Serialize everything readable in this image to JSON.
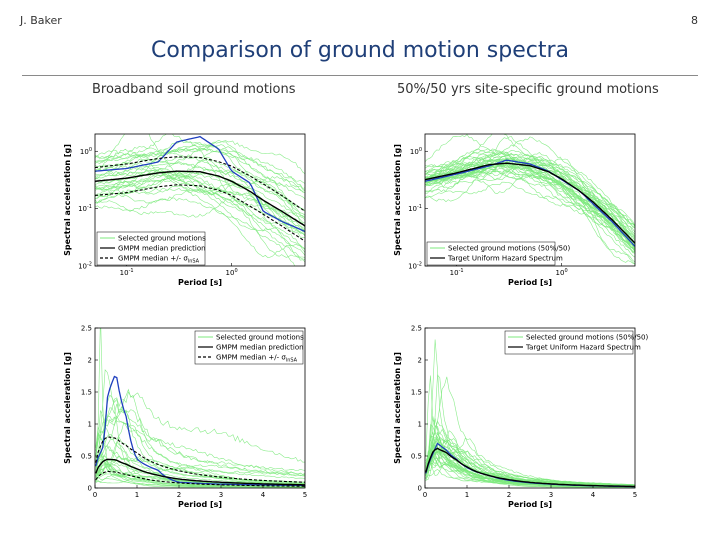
{
  "header": {
    "author": "J. Baker",
    "page_number": "8"
  },
  "title": "Comparison of ground motion spectra",
  "columns": {
    "left_label": "Broadband soil ground motions",
    "right_label": "50%/50 yrs site-specific ground motions"
  },
  "colors": {
    "records": "#7dea7d",
    "median": "#000000",
    "record_highlight": "#1f3fbf",
    "frame": "#000000"
  },
  "chart_data": [
    {
      "type": "line",
      "id": "top-left",
      "xscale": "log",
      "yscale": "log",
      "xlim": [
        0.05,
        5
      ],
      "ylim": [
        0.01,
        2
      ],
      "xticks": [
        {
          "v": 0.1,
          "label": "10",
          "exp": "-1"
        },
        {
          "v": 1,
          "label": "10",
          "exp": "0"
        }
      ],
      "yticks": [
        {
          "v": 0.01,
          "label": "10",
          "exp": "-2"
        },
        {
          "v": 0.1,
          "label": "10",
          "exp": "-1"
        },
        {
          "v": 1,
          "label": "10",
          "exp": "0"
        }
      ],
      "xlabel": "Period [s]",
      "ylabel": "Spectral acceleration [g]",
      "legend_position": "bottom-left",
      "legend": [
        {
          "label": "Selected ground motions",
          "style": "records"
        },
        {
          "label": "GMPM median prediction",
          "style": "median"
        },
        {
          "label": "GMPM median +/- σ",
          "sub": "lnSA",
          "style": "dashed"
        }
      ],
      "period": [
        0.05,
        0.1,
        0.2,
        0.3,
        0.5,
        0.75,
        1,
        1.5,
        2,
        3,
        5
      ],
      "median": [
        0.3,
        0.34,
        0.42,
        0.45,
        0.44,
        0.37,
        0.3,
        0.2,
        0.14,
        0.09,
        0.05
      ],
      "median_plus_sigma": [
        0.52,
        0.6,
        0.75,
        0.8,
        0.78,
        0.66,
        0.55,
        0.37,
        0.27,
        0.17,
        0.09
      ],
      "median_minus_sigma": [
        0.17,
        0.19,
        0.24,
        0.26,
        0.25,
        0.21,
        0.17,
        0.11,
        0.08,
        0.05,
        0.027
      ],
      "highlight_record": [
        0.45,
        0.5,
        0.65,
        1.45,
        1.8,
        1.1,
        0.45,
        0.28,
        0.09,
        0.06,
        0.04
      ],
      "record_spread": [
        0.55,
        0.55,
        0.55,
        0.6,
        0.65,
        0.7,
        0.75,
        0.8,
        0.85,
        0.9,
        0.95
      ],
      "record_count": 32
    },
    {
      "type": "line",
      "id": "top-right",
      "xscale": "log",
      "yscale": "log",
      "xlim": [
        0.05,
        5
      ],
      "ylim": [
        0.01,
        2
      ],
      "xticks": [
        {
          "v": 0.1,
          "label": "10",
          "exp": "-1"
        },
        {
          "v": 1,
          "label": "10",
          "exp": "0"
        }
      ],
      "yticks": [
        {
          "v": 0.01,
          "label": "10",
          "exp": "-2"
        },
        {
          "v": 0.1,
          "label": "10",
          "exp": "-1"
        },
        {
          "v": 1,
          "label": "10",
          "exp": "0"
        }
      ],
      "xlabel": "Period [s]",
      "ylabel": "Spectral acceleration [g]",
      "legend_position": "bottom-left",
      "legend": [
        {
          "label": "Selected ground motions (50%/50)",
          "style": "records"
        },
        {
          "label": "Target Uniform Hazard Spectrum",
          "style": "median"
        }
      ],
      "period": [
        0.05,
        0.1,
        0.2,
        0.3,
        0.5,
        0.75,
        1,
        1.5,
        2,
        3,
        5
      ],
      "target_uhs": [
        0.32,
        0.42,
        0.58,
        0.62,
        0.56,
        0.44,
        0.33,
        0.2,
        0.13,
        0.065,
        0.025
      ],
      "highlight_record": [
        0.3,
        0.4,
        0.55,
        0.7,
        0.6,
        0.45,
        0.32,
        0.2,
        0.12,
        0.06,
        0.022
      ],
      "record_spread": [
        0.2,
        0.2,
        0.2,
        0.2,
        0.22,
        0.25,
        0.28,
        0.3,
        0.32,
        0.35,
        0.38
      ],
      "record_count": 40
    },
    {
      "type": "line",
      "id": "bottom-left",
      "xscale": "linear",
      "yscale": "linear",
      "xlim": [
        0,
        5
      ],
      "ylim": [
        0,
        2.5
      ],
      "xticks": [
        {
          "v": 0,
          "label": "0"
        },
        {
          "v": 1,
          "label": "1"
        },
        {
          "v": 2,
          "label": "2"
        },
        {
          "v": 3,
          "label": "3"
        },
        {
          "v": 4,
          "label": "4"
        },
        {
          "v": 5,
          "label": "5"
        }
      ],
      "yticks": [
        {
          "v": 0,
          "label": "0"
        },
        {
          "v": 0.5,
          "label": "0.5"
        },
        {
          "v": 1,
          "label": "1"
        },
        {
          "v": 1.5,
          "label": "1.5"
        },
        {
          "v": 2,
          "label": "2"
        },
        {
          "v": 2.5,
          "label": "2.5"
        }
      ],
      "xlabel": "Period [s]",
      "ylabel": "Spectral acceleration [g]",
      "legend_position": "top-right",
      "legend": [
        {
          "label": "Selected ground motions",
          "style": "records"
        },
        {
          "label": "GMPM median prediction",
          "style": "median"
        },
        {
          "label": "GMPM median +/- σ",
          "sub": "lnSA",
          "style": "dashed"
        }
      ],
      "period": [
        0.05,
        0.1,
        0.2,
        0.3,
        0.5,
        0.75,
        1,
        1.5,
        2,
        3,
        5
      ],
      "median": [
        0.3,
        0.34,
        0.42,
        0.45,
        0.44,
        0.37,
        0.3,
        0.2,
        0.14,
        0.09,
        0.05
      ],
      "median_plus_sigma": [
        0.52,
        0.6,
        0.75,
        0.8,
        0.78,
        0.66,
        0.55,
        0.37,
        0.27,
        0.17,
        0.09
      ],
      "median_minus_sigma": [
        0.17,
        0.19,
        0.24,
        0.26,
        0.25,
        0.21,
        0.17,
        0.11,
        0.08,
        0.05,
        0.027
      ],
      "highlight_record": [
        0.45,
        0.5,
        0.65,
        1.45,
        1.8,
        1.1,
        0.45,
        0.28,
        0.09,
        0.06,
        0.04
      ],
      "record_spread": [
        0.55,
        0.55,
        0.55,
        0.6,
        0.65,
        0.7,
        0.75,
        0.8,
        0.85,
        0.9,
        0.95
      ],
      "record_count": 32
    },
    {
      "type": "line",
      "id": "bottom-right",
      "xscale": "linear",
      "yscale": "linear",
      "xlim": [
        0,
        5
      ],
      "ylim": [
        0,
        2.5
      ],
      "xticks": [
        {
          "v": 0,
          "label": "0"
        },
        {
          "v": 1,
          "label": "1"
        },
        {
          "v": 2,
          "label": "2"
        },
        {
          "v": 3,
          "label": "3"
        },
        {
          "v": 4,
          "label": "4"
        },
        {
          "v": 5,
          "label": "5"
        }
      ],
      "yticks": [
        {
          "v": 0,
          "label": "0"
        },
        {
          "v": 0.5,
          "label": "0.5"
        },
        {
          "v": 1,
          "label": "1"
        },
        {
          "v": 1.5,
          "label": "1.5"
        },
        {
          "v": 2,
          "label": "2"
        },
        {
          "v": 2.5,
          "label": "2.5"
        }
      ],
      "xlabel": "Period [s]",
      "ylabel": "Spectral acceleration [g]",
      "legend_position": "top-right",
      "legend": [
        {
          "label": "Selected ground motions (50%/50)",
          "style": "records"
        },
        {
          "label": "Target Uniform Hazard Spectrum",
          "style": "median"
        }
      ],
      "period": [
        0.05,
        0.1,
        0.2,
        0.3,
        0.5,
        0.75,
        1,
        1.5,
        2,
        3,
        5
      ],
      "target_uhs": [
        0.32,
        0.42,
        0.58,
        0.62,
        0.56,
        0.44,
        0.33,
        0.2,
        0.13,
        0.065,
        0.025
      ],
      "highlight_record": [
        0.3,
        0.4,
        0.55,
        0.7,
        0.6,
        0.45,
        0.32,
        0.2,
        0.12,
        0.06,
        0.022
      ],
      "record_spread": [
        0.2,
        0.2,
        0.2,
        0.2,
        0.22,
        0.25,
        0.28,
        0.3,
        0.32,
        0.35,
        0.38
      ],
      "record_count": 40
    }
  ]
}
